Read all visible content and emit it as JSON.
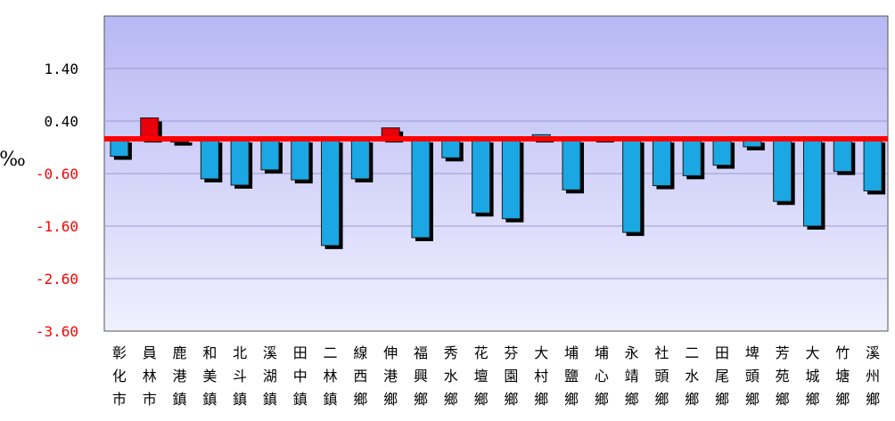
{
  "chart_data": {
    "type": "bar",
    "ylabel": "‰",
    "ylim": [
      -3.6,
      2.4
    ],
    "yticks": [
      "1.40",
      "0.40",
      "-0.60",
      "-1.60",
      "-2.60",
      "-3.60"
    ],
    "ytick_values": [
      1.4,
      0.4,
      -0.6,
      -1.6,
      -2.6,
      -3.6
    ],
    "reference_line": 0.06,
    "categories": [
      "彰化市",
      "員林市",
      "鹿港鎮",
      "和美鎮",
      "北斗鎮",
      "溪湖鎮",
      "田中鎮",
      "二林鎮",
      "線西鄉",
      "伸港鄉",
      "福興鄉",
      "秀水鄉",
      "花壇鄉",
      "芬園鄉",
      "大村鄉",
      "埔鹽鄉",
      "埔心鄉",
      "永靖鄉",
      "社頭鄉",
      "二水鄉",
      "田尾鄉",
      "埤頭鄉",
      "芳苑鄉",
      "大城鄉",
      "竹塘鄉",
      "溪州鄉"
    ],
    "values": [
      -0.27,
      0.46,
      0.0,
      -0.7,
      -0.82,
      -0.53,
      -0.72,
      -1.97,
      -0.7,
      0.27,
      -1.82,
      -0.3,
      -1.35,
      -1.46,
      0.14,
      -0.91,
      0.1,
      -1.72,
      -0.83,
      -0.64,
      -0.44,
      -0.09,
      -1.13,
      -1.6,
      -0.56,
      -0.93
    ],
    "highlight": [
      "員林市",
      "伸港鄉"
    ],
    "colors": {
      "bar": "#1aa7e3",
      "highlight_bar": "#e8000b",
      "shadow": "#000000",
      "reference_line": "#ff0000",
      "plot_bg_top": "#b8b8f4",
      "plot_bg_bottom": "#f0f0ff",
      "positive_tick": "#000000",
      "negative_tick": "#ff0000"
    },
    "grid": true
  }
}
